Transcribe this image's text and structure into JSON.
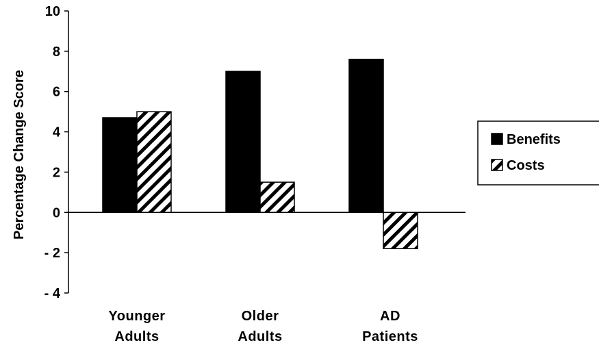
{
  "chart_data": {
    "type": "bar",
    "categories": [
      [
        "Younger",
        "Adults"
      ],
      [
        "Older",
        "Adults"
      ],
      [
        "AD",
        "Patients"
      ]
    ],
    "series": [
      {
        "name": "Benefits",
        "values": [
          4.7,
          7.0,
          7.6
        ],
        "fill": "solid",
        "color": "#000000"
      },
      {
        "name": "Costs",
        "values": [
          5.0,
          1.5,
          -1.8
        ],
        "fill": "hatched",
        "color": "#000000"
      }
    ],
    "ylabel": "Percentage Change Score",
    "xlabel": "",
    "title": "",
    "ylim": [
      -4,
      10
    ],
    "yticks": [
      10,
      8,
      6,
      4,
      2,
      0,
      -2,
      -4
    ],
    "ytick_labels": [
      "10",
      "8",
      "6",
      "4",
      "2",
      "0",
      "- 2",
      "- 4"
    ],
    "grid": false,
    "legend_position": "right"
  }
}
